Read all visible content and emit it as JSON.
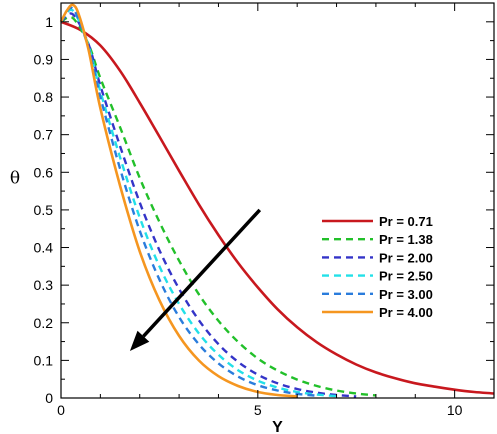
{
  "chart_data": {
    "type": "line",
    "xlabel": "Y",
    "ylabel": "θ",
    "xlim": [
      0,
      11
    ],
    "ylim": [
      0,
      1.05
    ],
    "xticks": [
      0,
      5,
      10
    ],
    "yticks": [
      0,
      0.1,
      0.2,
      0.3,
      0.4,
      0.5,
      0.6,
      0.7,
      0.8,
      0.9,
      1
    ],
    "grid": false,
    "legend_position": "right",
    "annotations": [
      "arrow pointing toward lower left indicating increasing Pr"
    ],
    "series": [
      {
        "name": "Pr = 0.71",
        "color": "#c8181e",
        "dash": "solid",
        "x": [
          0,
          0.5,
          1,
          1.5,
          2,
          2.5,
          3,
          3.5,
          4,
          4.5,
          5,
          5.5,
          6,
          6.5,
          7,
          7.5,
          8,
          8.5,
          9,
          9.5,
          10,
          10.5,
          11
        ],
        "y": [
          1.0,
          0.978,
          0.937,
          0.87,
          0.785,
          0.695,
          0.604,
          0.515,
          0.433,
          0.359,
          0.294,
          0.236,
          0.188,
          0.148,
          0.116,
          0.089,
          0.068,
          0.052,
          0.039,
          0.03,
          0.022,
          0.016,
          0.012
        ]
      },
      {
        "name": "Pr = 1.38",
        "color": "#22c02a",
        "dash": "dashed",
        "x": [
          0,
          0.3,
          0.7,
          1,
          1.5,
          2,
          2.5,
          3,
          3.5,
          4,
          4.5,
          5,
          5.5,
          6,
          6.5,
          7,
          7.5,
          8
        ],
        "y": [
          1.0,
          1.01,
          0.94,
          0.85,
          0.72,
          0.585,
          0.468,
          0.365,
          0.276,
          0.205,
          0.149,
          0.105,
          0.073,
          0.049,
          0.032,
          0.02,
          0.012,
          0.007
        ]
      },
      {
        "name": "Pr = 2.00",
        "color": "#3434c8",
        "dash": "dashed",
        "x": [
          0,
          0.3,
          0.7,
          1,
          1.5,
          2,
          2.5,
          3,
          3.5,
          4,
          4.5,
          5,
          5.5,
          6,
          6.5,
          7,
          7.5
        ],
        "y": [
          1.0,
          1.02,
          0.94,
          0.83,
          0.67,
          0.52,
          0.393,
          0.29,
          0.207,
          0.143,
          0.096,
          0.062,
          0.039,
          0.024,
          0.014,
          0.008,
          0.004
        ]
      },
      {
        "name": "Pr = 2.50",
        "color": "#22e0e8",
        "dash": "dashed",
        "x": [
          0,
          0.3,
          0.7,
          1,
          1.5,
          2,
          2.5,
          3,
          3.5,
          4,
          4.5,
          5,
          5.5,
          6,
          6.5,
          7
        ],
        "y": [
          1.0,
          1.03,
          0.935,
          0.815,
          0.64,
          0.48,
          0.35,
          0.25,
          0.172,
          0.115,
          0.074,
          0.046,
          0.028,
          0.016,
          0.009,
          0.005
        ]
      },
      {
        "name": "Pr = 3.00",
        "color": "#2a7cdc",
        "dash": "dashed",
        "x": [
          0,
          0.3,
          0.7,
          1,
          1.5,
          2,
          2.5,
          3,
          3.5,
          4,
          4.5,
          5,
          5.5,
          6,
          6.5
        ],
        "y": [
          1.0,
          1.035,
          0.93,
          0.8,
          0.61,
          0.445,
          0.315,
          0.215,
          0.143,
          0.092,
          0.057,
          0.034,
          0.02,
          0.011,
          0.006
        ]
      },
      {
        "name": "Pr = 4.00",
        "color": "#f59620",
        "dash": "solid",
        "x": [
          0,
          0.15,
          0.3,
          0.45,
          0.7,
          1,
          1.5,
          2,
          2.5,
          3,
          3.5,
          4,
          4.5,
          5,
          5.5,
          6
        ],
        "y": [
          1.0,
          1.03,
          1.045,
          1.02,
          0.925,
          0.77,
          0.565,
          0.39,
          0.26,
          0.165,
          0.1,
          0.058,
          0.032,
          0.016,
          0.008,
          0.004
        ]
      }
    ],
    "arrow": {
      "from": [
        5.05,
        0.5
      ],
      "to": [
        1.75,
        0.125
      ]
    }
  }
}
